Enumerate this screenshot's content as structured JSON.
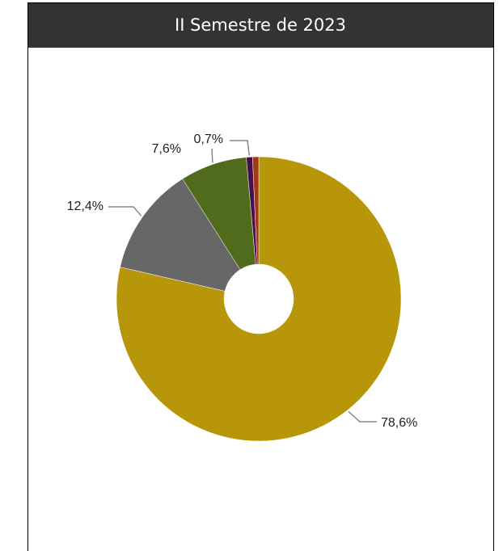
{
  "chart_data": {
    "type": "donut",
    "title": "II Semestre de 2023",
    "categories": [
      null,
      null,
      null,
      null,
      null
    ],
    "values": [
      78.6,
      12.4,
      7.6,
      0.7,
      0.7
    ],
    "value_labels": [
      "78,6%",
      "12,4%",
      "7,6%",
      "0,7%",
      null
    ],
    "colors": [
      "#b8960a",
      "#676767",
      "#4f6b1b",
      "#4a0f4a",
      "#a23a18"
    ]
  }
}
